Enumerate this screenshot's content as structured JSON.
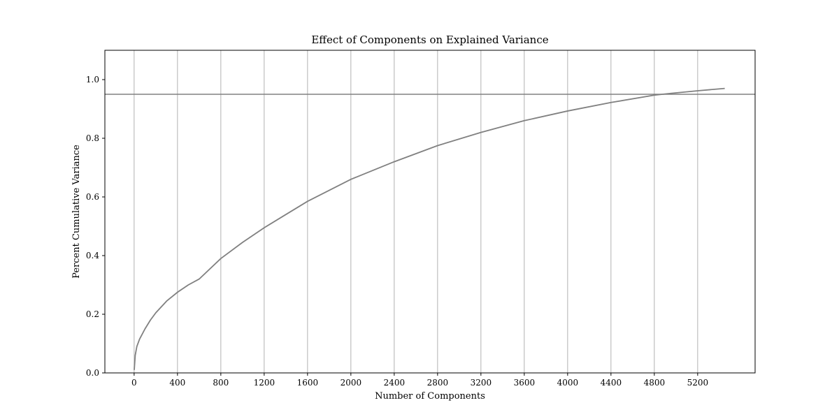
{
  "chart_data": {
    "type": "line",
    "title": "Effect of Components on Explained Variance",
    "xlabel": "Number of Components",
    "ylabel": "Percent Cumulative Variance",
    "xlim": [
      -270,
      5730
    ],
    "ylim": [
      0.0,
      1.1
    ],
    "xticks": [
      0,
      400,
      800,
      1200,
      1600,
      2000,
      2400,
      2800,
      3200,
      3600,
      4000,
      4400,
      4800,
      5200
    ],
    "yticks": [
      0.0,
      0.2,
      0.4,
      0.6,
      0.8,
      1.0
    ],
    "xtick_labels": [
      "0",
      "400",
      "800",
      "1200",
      "1600",
      "2000",
      "2400",
      "2800",
      "3200",
      "3600",
      "4000",
      "4400",
      "4800",
      "5200"
    ],
    "ytick_labels": [
      "0.0",
      "0.2",
      "0.4",
      "0.6",
      "0.8",
      "1.0"
    ],
    "grid": "vertical",
    "line_color": "#808080",
    "grid_color": "#b0b0b0",
    "series": [
      {
        "x": [
          1,
          10,
          25,
          50,
          100,
          150,
          200,
          300,
          400,
          500,
          600,
          800,
          1000,
          1200,
          1400,
          1600,
          2000,
          2400,
          2800,
          3200,
          3600,
          4000,
          4400,
          4800,
          4950,
          5200,
          5450
        ],
        "values": [
          0.01,
          0.06,
          0.09,
          0.115,
          0.15,
          0.18,
          0.205,
          0.245,
          0.275,
          0.3,
          0.32,
          0.39,
          0.445,
          0.495,
          0.54,
          0.585,
          0.66,
          0.72,
          0.775,
          0.82,
          0.86,
          0.893,
          0.922,
          0.947,
          0.953,
          0.962,
          0.97
        ]
      }
    ],
    "hlines": [
      0.95
    ]
  }
}
